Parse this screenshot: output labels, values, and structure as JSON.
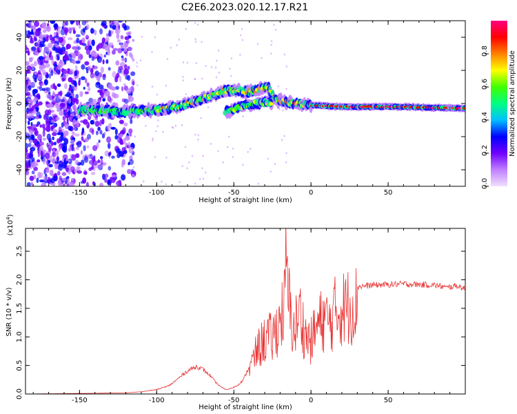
{
  "title": "C2E6.2023.020.12.17.R21",
  "chart_data": [
    {
      "type": "heatmap",
      "xlabel": "Height of straight line (km)",
      "ylabel": "Frequency (Hz)",
      "xlim": [
        -185,
        100
      ],
      "ylim": [
        -50,
        50
      ],
      "xticks": [
        -150,
        -100,
        -50,
        0,
        50
      ],
      "yticks": [
        -40,
        -20,
        0,
        20,
        40
      ],
      "colorbar": {
        "label": "Normalized spectral amplitude",
        "range": [
          0.0,
          1.0
        ],
        "ticks": [
          "0.0",
          "0.2",
          "0.4",
          "0.6",
          "0.8"
        ],
        "tick_values": [
          0.0,
          0.2,
          0.4,
          0.6,
          0.8
        ],
        "colors": [
          "#f0e0ff",
          "#c080ff",
          "#7000ff",
          "#0000ff",
          "#00c0ff",
          "#00ff80",
          "#40ff00",
          "#ffff00",
          "#ff8000",
          "#ff0000",
          "#ff0080"
        ]
      },
      "ridge": [
        {
          "x": -150,
          "y": -4
        },
        {
          "x": -120,
          "y": -5
        },
        {
          "x": -100,
          "y": -4
        },
        {
          "x": -85,
          "y": -2
        },
        {
          "x": -70,
          "y": 3
        },
        {
          "x": -55,
          "y": 8
        },
        {
          "x": -40,
          "y": 7
        },
        {
          "x": -28,
          "y": 10
        },
        {
          "x": -22,
          "y": 2
        },
        {
          "x": -10,
          "y": 0
        },
        {
          "x": 0,
          "y": -1
        },
        {
          "x": 20,
          "y": -2
        },
        {
          "x": 60,
          "y": -2
        },
        {
          "x": 100,
          "y": -3
        }
      ],
      "secondary_ridge": [
        {
          "x": -55,
          "y": -5
        },
        {
          "x": -45,
          "y": -2
        },
        {
          "x": -35,
          "y": 0
        },
        {
          "x": -25,
          "y": 1
        }
      ]
    },
    {
      "type": "line",
      "xlabel": "Height of straight line (km)",
      "ylabel": "SNR (10 * v/v)",
      "y_multiplier": "(x10",
      "y_multiplier_exp": "4",
      "xlim": [
        -185,
        100
      ],
      "ylim": [
        0,
        2.9
      ],
      "xticks": [
        -150,
        -100,
        -50,
        0,
        50
      ],
      "yticks": [
        "0.0",
        "0.5",
        "1.0",
        "1.5",
        "2.0",
        "2.5"
      ],
      "ytick_values": [
        0.0,
        0.5,
        1.0,
        1.5,
        2.0,
        2.5
      ],
      "color": "#e83030",
      "series": [
        {
          "x": [
            -185,
            -150,
            -120,
            -110,
            -100,
            -92,
            -86,
            -82,
            -78,
            -74,
            -70,
            -66,
            -62,
            -58,
            -55,
            -52,
            -48,
            -44,
            -40,
            -37,
            -34,
            -31,
            -28,
            -25,
            -22,
            -19,
            -17,
            -16,
            -15,
            -13,
            -11,
            -9,
            -7,
            -5,
            -3,
            0,
            3,
            6,
            9,
            12,
            15,
            18,
            22,
            26,
            30,
            40,
            50,
            60,
            70,
            80,
            86,
            88,
            90,
            95,
            100
          ],
          "y": [
            0.0,
            0.01,
            0.02,
            0.04,
            0.08,
            0.15,
            0.28,
            0.38,
            0.45,
            0.5,
            0.45,
            0.35,
            0.22,
            0.12,
            0.08,
            0.1,
            0.15,
            0.25,
            0.5,
            0.75,
            0.95,
            1.1,
            1.2,
            1.15,
            1.4,
            1.65,
            1.9,
            2.88,
            2.1,
            1.6,
            1.3,
            1.55,
            1.7,
            1.4,
            1.2,
            1.1,
            1.35,
            1.5,
            1.6,
            1.45,
            1.7,
            1.75,
            1.82,
            1.86,
            1.9,
            1.93,
            1.94,
            1.95,
            1.94,
            1.93,
            1.9,
            1.88,
            1.9,
            1.92,
            1.86
          ]
        }
      ]
    }
  ]
}
